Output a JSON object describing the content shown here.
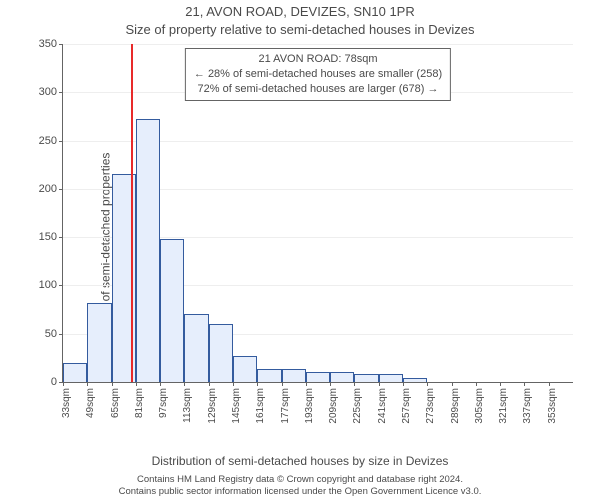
{
  "title_line1": "21, AVON ROAD, DEVIZES, SN10 1PR",
  "title_line2": "Size of property relative to semi-detached houses in Devizes",
  "y_axis_label": "Number of semi-detached properties",
  "x_axis_label": "Distribution of semi-detached houses by size in Devizes",
  "footer_line1": "Contains HM Land Registry data © Crown copyright and database right 2024.",
  "footer_line2": "Contains public sector information licensed under the Open Government Licence v3.0.",
  "annotation": {
    "line1": "21 AVON ROAD: 78sqm",
    "line2": "← 28% of semi-detached houses are smaller (258)",
    "line3": "72% of semi-detached houses are larger (678) →",
    "border_color": "#646464"
  },
  "chart": {
    "type": "histogram",
    "ylim": [
      0,
      350
    ],
    "ytick_step": 50,
    "x_unit": "sqm",
    "x_start": 33,
    "x_step": 16,
    "x_bars": 21,
    "bar_width_ratio": 1.0,
    "bar_fill": "#e6eefc",
    "bar_stroke": "#345b9e",
    "grid_color": "#eeeeee",
    "axis_color": "#646464",
    "background": "#ffffff",
    "marker_value": 78,
    "marker_color": "#e82a2a",
    "values": [
      20,
      82,
      215,
      272,
      148,
      70,
      60,
      27,
      13,
      13,
      10,
      10,
      8,
      8,
      4,
      0,
      0,
      0,
      0,
      0,
      0
    ],
    "title_fontsize": 13,
    "label_fontsize": 12,
    "tick_fontsize": 11
  }
}
